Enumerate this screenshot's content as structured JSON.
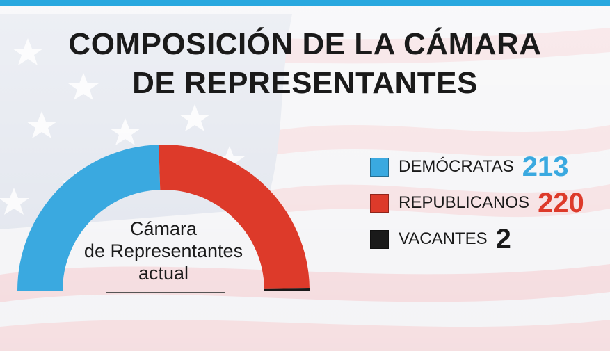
{
  "title": {
    "line1": "COMPOSICIÓN DE LA CÁMARA",
    "line2": "DE REPRESENTANTES"
  },
  "colors": {
    "accent_bar": "#29a8df",
    "democrats": "#3aa9e0",
    "republicans": "#dd3a2a",
    "vacancies": "#1a1a1a",
    "text": "#1a1a1a"
  },
  "background_icon": "us-flag-icon",
  "chart_data": {
    "type": "pie",
    "variant": "semicircle",
    "title": "COMPOSICIÓN DE LA CÁMARA DE REPRESENTANTES",
    "center_label": [
      "Cámara",
      "de Representantes",
      "actual"
    ],
    "legend_position": "right",
    "series": [
      {
        "name": "DEMÓCRATAS",
        "value": 213,
        "color": "#3aa9e0"
      },
      {
        "name": "REPUBLICANOS",
        "value": 220,
        "color": "#dd3a2a"
      },
      {
        "name": "VACANTES",
        "value": 2,
        "color": "#1a1a1a"
      }
    ]
  }
}
